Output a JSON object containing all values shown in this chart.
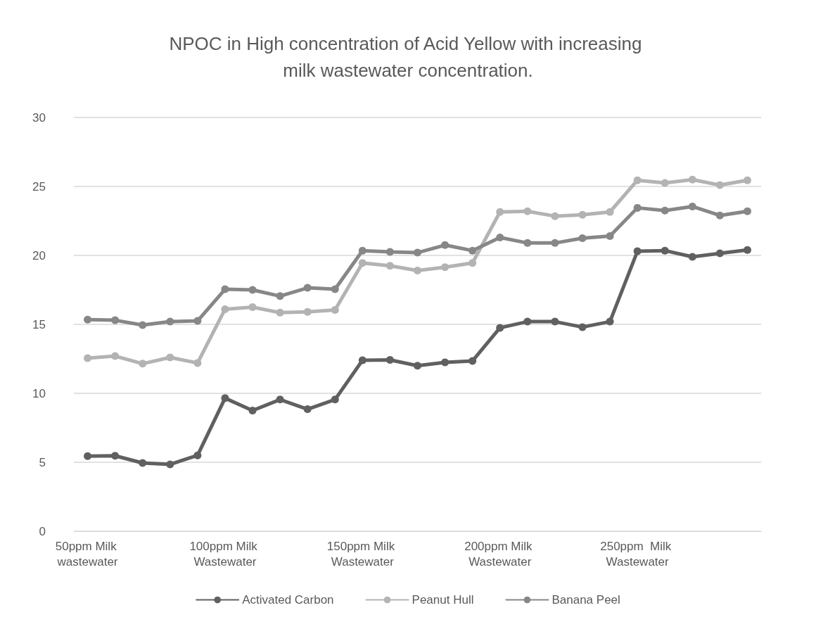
{
  "chart_data": {
    "type": "line",
    "title": "NPOC in High concentration of Acid Yellow with increasing milk wastewater concentration.",
    "categories": [
      "50ppm Milk wastewater",
      null,
      null,
      null,
      null,
      "100ppm Milk Wastewater",
      null,
      null,
      null,
      null,
      "150ppm Milk Wastewater",
      null,
      null,
      null,
      null,
      "200ppm Milk Wastewater",
      null,
      null,
      null,
      null,
      "250ppm  Milk Wastewater",
      null,
      null,
      null,
      null
    ],
    "series": [
      {
        "name": "Activated Carbon",
        "color": "#606060",
        "values": [
          5.45,
          5.47,
          4.95,
          4.85,
          5.5,
          9.65,
          8.75,
          9.55,
          8.85,
          9.55,
          12.4,
          12.42,
          12.0,
          12.25,
          12.35,
          14.75,
          15.2,
          15.2,
          14.8,
          15.2,
          20.3,
          20.35,
          19.9,
          20.15,
          20.4
        ]
      },
      {
        "name": "Peanut Hull",
        "color": "#b3b3b3",
        "values": [
          12.55,
          12.7,
          12.15,
          12.6,
          12.2,
          16.1,
          16.25,
          15.85,
          15.9,
          16.05,
          19.45,
          19.25,
          18.9,
          19.15,
          19.45,
          23.15,
          23.2,
          22.85,
          22.95,
          23.15,
          25.45,
          25.25,
          25.5,
          25.1,
          25.45
        ]
      },
      {
        "name": "Banana Peel",
        "color": "#878787",
        "values": [
          15.35,
          15.3,
          14.95,
          15.2,
          15.25,
          17.55,
          17.5,
          17.05,
          17.65,
          17.55,
          20.35,
          20.25,
          20.2,
          20.75,
          20.35,
          21.3,
          20.9,
          20.9,
          21.25,
          21.4,
          23.45,
          23.25,
          23.55,
          22.9,
          23.2
        ]
      }
    ],
    "ylim": [
      0,
      30
    ],
    "yticks": [
      0,
      5,
      10,
      15,
      20,
      25,
      30
    ],
    "grid": "y",
    "legend": "bottom",
    "marker": "circle",
    "line_style": "solid"
  }
}
